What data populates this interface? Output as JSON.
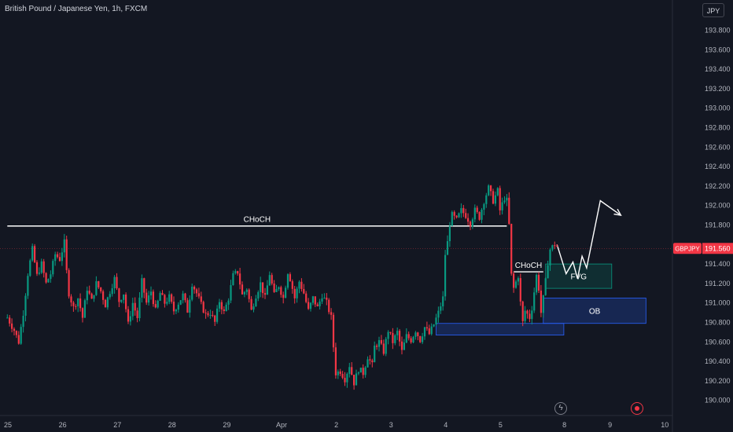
{
  "header": {
    "title": "British Pound / Japanese Yen, 1h, FXCM",
    "currency": "JPY"
  },
  "icons": {
    "flash": "lightning-icon",
    "record": "record-icon"
  },
  "colors": {
    "background": "#131722",
    "up": "#089981",
    "down": "#f23645",
    "annotation": "#ffffff",
    "fvg_fill": "rgba(8,153,129,0.18)",
    "ob_fill": "rgba(41,98,255,0.22)",
    "price_tag": "#f23645"
  },
  "chart_data": {
    "type": "candlestick",
    "symbol": "GBPJPY",
    "last_price": 191.56,
    "y_ticks": [
      193.8,
      193.6,
      193.4,
      193.2,
      193.0,
      192.8,
      192.6,
      192.4,
      192.2,
      192.0,
      191.8,
      191.4,
      191.2,
      191.0,
      190.8,
      190.6,
      190.4,
      190.2,
      190.0
    ],
    "y_tick_labels": [
      "193.800",
      "193.600",
      "193.400",
      "193.200",
      "193.000",
      "192.800",
      "192.600",
      "192.400",
      "192.200",
      "192.000",
      "191.800",
      "191.400",
      "191.200",
      "191.000",
      "190.800",
      "190.600",
      "190.400",
      "190.200",
      "190.000"
    ],
    "ylim": [
      189.9,
      194.0
    ],
    "x_ticks": [
      {
        "label": "25",
        "x": 0
      },
      {
        "label": "26",
        "x": 24
      },
      {
        "label": "27",
        "x": 48
      },
      {
        "label": "28",
        "x": 72
      },
      {
        "label": "29",
        "x": 96
      },
      {
        "label": "Apr",
        "x": 120
      },
      {
        "label": "2",
        "x": 144
      },
      {
        "label": "3",
        "x": 168
      },
      {
        "label": "4",
        "x": 192
      },
      {
        "label": "5",
        "x": 216
      },
      {
        "label": "8",
        "x": 244
      },
      {
        "label": "9",
        "x": 264
      },
      {
        "label": "10",
        "x": 288
      }
    ],
    "path": [
      [
        -3,
        190.85
      ],
      [
        0,
        190.72
      ],
      [
        2,
        190.6
      ],
      [
        4,
        190.9
      ],
      [
        6,
        191.3
      ],
      [
        8,
        191.55
      ],
      [
        10,
        191.28
      ],
      [
        12,
        191.4
      ],
      [
        14,
        191.2
      ],
      [
        16,
        191.3
      ],
      [
        18,
        191.5
      ],
      [
        20,
        191.45
      ],
      [
        22,
        191.62
      ],
      [
        23,
        191.32
      ],
      [
        24,
        191.1
      ],
      [
        26,
        190.95
      ],
      [
        28,
        191.05
      ],
      [
        30,
        190.85
      ],
      [
        32,
        191.15
      ],
      [
        34,
        191.02
      ],
      [
        36,
        191.2
      ],
      [
        38,
        191.12
      ],
      [
        40,
        190.98
      ],
      [
        42,
        191.12
      ],
      [
        44,
        191.25
      ],
      [
        46,
        191.02
      ],
      [
        48,
        191.1
      ],
      [
        50,
        190.78
      ],
      [
        52,
        191.0
      ],
      [
        54,
        190.85
      ],
      [
        56,
        191.22
      ],
      [
        58,
        191.0
      ],
      [
        60,
        191.12
      ],
      [
        62,
        190.92
      ],
      [
        64,
        191.1
      ],
      [
        66,
        191.0
      ],
      [
        68,
        191.06
      ],
      [
        70,
        190.92
      ],
      [
        72,
        191.0
      ],
      [
        74,
        191.08
      ],
      [
        76,
        190.92
      ],
      [
        78,
        191.2
      ],
      [
        80,
        191.1
      ],
      [
        82,
        190.98
      ],
      [
        84,
        190.88
      ],
      [
        86,
        190.9
      ],
      [
        88,
        190.8
      ],
      [
        90,
        191.02
      ],
      [
        92,
        190.9
      ],
      [
        94,
        191.05
      ],
      [
        96,
        191.28
      ],
      [
        98,
        191.32
      ],
      [
        100,
        191.08
      ],
      [
        102,
        191.15
      ],
      [
        104,
        190.92
      ],
      [
        106,
        191.08
      ],
      [
        108,
        191.2
      ],
      [
        110,
        191.05
      ],
      [
        112,
        191.3
      ],
      [
        114,
        191.08
      ],
      [
        116,
        191.18
      ],
      [
        118,
        191.05
      ],
      [
        120,
        191.32
      ],
      [
        121,
        191.25
      ],
      [
        123,
        191.05
      ],
      [
        125,
        191.22
      ],
      [
        127,
        191.1
      ],
      [
        129,
        190.92
      ],
      [
        131,
        191.05
      ],
      [
        133,
        190.95
      ],
      [
        135,
        191.08
      ],
      [
        137,
        191.0
      ],
      [
        139,
        190.85
      ],
      [
        140,
        190.55
      ],
      [
        141,
        190.28
      ],
      [
        143,
        190.3
      ],
      [
        145,
        190.22
      ],
      [
        147,
        190.36
      ],
      [
        149,
        190.18
      ],
      [
        151,
        190.32
      ],
      [
        153,
        190.28
      ],
      [
        155,
        190.45
      ],
      [
        157,
        190.36
      ],
      [
        158,
        190.55
      ],
      [
        160,
        190.6
      ],
      [
        162,
        190.5
      ],
      [
        164,
        190.72
      ],
      [
        166,
        190.6
      ],
      [
        168,
        190.7
      ],
      [
        170,
        190.5
      ],
      [
        172,
        190.66
      ],
      [
        174,
        190.62
      ],
      [
        176,
        190.72
      ],
      [
        178,
        190.62
      ],
      [
        180,
        190.75
      ],
      [
        182,
        190.68
      ],
      [
        184,
        190.78
      ],
      [
        186,
        190.9
      ],
      [
        188,
        191.05
      ],
      [
        189,
        191.5
      ],
      [
        190,
        191.62
      ],
      [
        191,
        191.82
      ],
      [
        192,
        191.9
      ],
      [
        194,
        191.85
      ],
      [
        196,
        191.95
      ],
      [
        198,
        191.9
      ],
      [
        200,
        191.82
      ],
      [
        202,
        191.95
      ],
      [
        204,
        191.88
      ],
      [
        206,
        192.05
      ],
      [
        208,
        192.18
      ],
      [
        210,
        192.05
      ],
      [
        212,
        192.15
      ],
      [
        213,
        191.95
      ],
      [
        215,
        192.08
      ],
      [
        216,
        192.05
      ],
      [
        217,
        191.8
      ],
      [
        217.5,
        191.35
      ],
      [
        219,
        191.15
      ],
      [
        221,
        191.28
      ],
      [
        222,
        191.0
      ],
      [
        223,
        190.8
      ],
      [
        224,
        190.92
      ],
      [
        226,
        190.85
      ],
      [
        227,
        190.95
      ],
      [
        229,
        191.28
      ],
      [
        230,
        191.15
      ],
      [
        231,
        190.9
      ],
      [
        232,
        191.05
      ],
      [
        233,
        191.22
      ],
      [
        234,
        191.42
      ],
      [
        235,
        191.55
      ],
      [
        237,
        191.6
      ],
      [
        238,
        191.58
      ]
    ],
    "annotations": [
      {
        "type": "hline",
        "label": "CHoCH",
        "x1": -3,
        "x2": 216,
        "y": 191.79
      },
      {
        "type": "hline",
        "label": "CHoCH",
        "x1": 219,
        "x2": 232,
        "y": 191.32
      },
      {
        "type": "box",
        "label": "FVG",
        "x1": 233,
        "x2": 262,
        "y1": 191.15,
        "y2": 191.4,
        "style": "fvg"
      },
      {
        "type": "box",
        "label": "OB",
        "x1": 232,
        "x2": 277,
        "y1": 190.79,
        "y2": 191.05,
        "style": "ob"
      },
      {
        "type": "box",
        "label": "",
        "x1": 185,
        "x2": 241,
        "y1": 190.67,
        "y2": 190.79,
        "style": "ob"
      },
      {
        "type": "projection",
        "points": [
          [
            238,
            191.6
          ],
          [
            242,
            191.3
          ],
          [
            245,
            191.42
          ],
          [
            247,
            191.25
          ],
          [
            249,
            191.48
          ],
          [
            251,
            191.36
          ],
          [
            257,
            192.05
          ],
          [
            266,
            191.9
          ]
        ]
      }
    ]
  }
}
